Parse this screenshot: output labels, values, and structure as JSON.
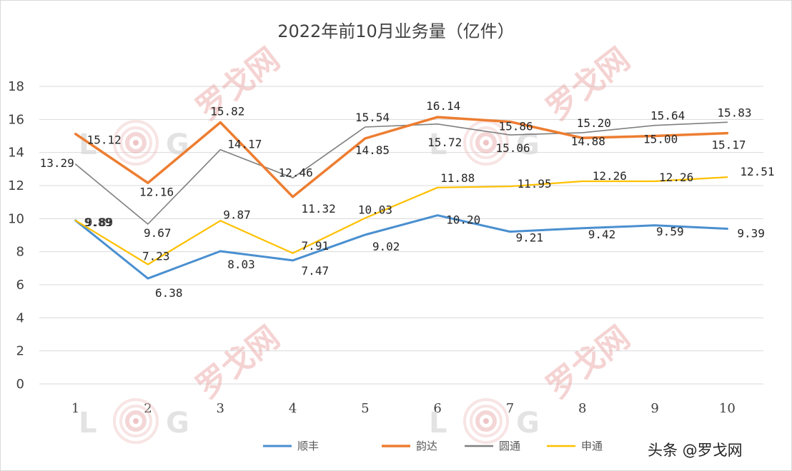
{
  "chart_data": {
    "type": "line",
    "title": "2022年前10月业务量（亿件）",
    "xlabel": "",
    "ylabel": "",
    "categories": [
      "1",
      "2",
      "3",
      "4",
      "5",
      "6",
      "7",
      "8",
      "9",
      "10"
    ],
    "ylim": [
      0,
      18
    ],
    "yticks": [
      "0",
      "2",
      "4",
      "6",
      "8",
      "10",
      "12",
      "14",
      "16",
      "18"
    ],
    "grid": "horizontal",
    "legend_position": "bottom-center",
    "series": [
      {
        "name": "顺丰",
        "color": "#4a8fd0",
        "width": 3,
        "values": [
          9.89,
          6.38,
          8.03,
          7.47,
          9.02,
          10.2,
          9.21,
          9.42,
          9.59,
          9.39
        ],
        "labels": [
          "9.89",
          "6.38",
          "8.03",
          "7.47",
          "9.02",
          "10.20",
          "9.21",
          "9.42",
          "9.59",
          "9.39"
        ]
      },
      {
        "name": "韵达",
        "color": "#ed7d31",
        "width": 3.5,
        "values": [
          15.12,
          12.16,
          15.82,
          11.32,
          14.85,
          16.14,
          15.86,
          14.88,
          15.0,
          15.17
        ],
        "labels": [
          "15.12",
          "12.16",
          "15.82",
          "11.32",
          "14.85",
          "16.14",
          "15.86",
          "14.88",
          "15.00",
          "15.17"
        ]
      },
      {
        "name": "圆通",
        "color": "#7f7f7f",
        "width": 1.6,
        "values": [
          13.29,
          9.67,
          14.17,
          12.46,
          15.54,
          15.72,
          15.06,
          15.2,
          15.64,
          15.83
        ],
        "labels": [
          "13.29",
          "9.67",
          "14.17",
          "12.46",
          "15.54",
          "15.72",
          "15.06",
          "15.20",
          "15.64",
          "15.83"
        ]
      },
      {
        "name": "申通",
        "color": "#ffc000",
        "width": 2.2,
        "values": [
          9.89,
          7.23,
          9.87,
          7.91,
          10.03,
          11.88,
          11.95,
          12.26,
          12.26,
          12.51
        ],
        "labels": [
          "9.89",
          "7.23",
          "9.87",
          "7.91",
          "10.03",
          "11.88",
          "11.95",
          "12.26",
          "12.26",
          "12.51"
        ]
      }
    ]
  },
  "watermark": {
    "brand_text": "罗戈网",
    "logo_letters": "LOG",
    "credit": "头条 @罗戈网",
    "brand_color": "#d9534f"
  }
}
